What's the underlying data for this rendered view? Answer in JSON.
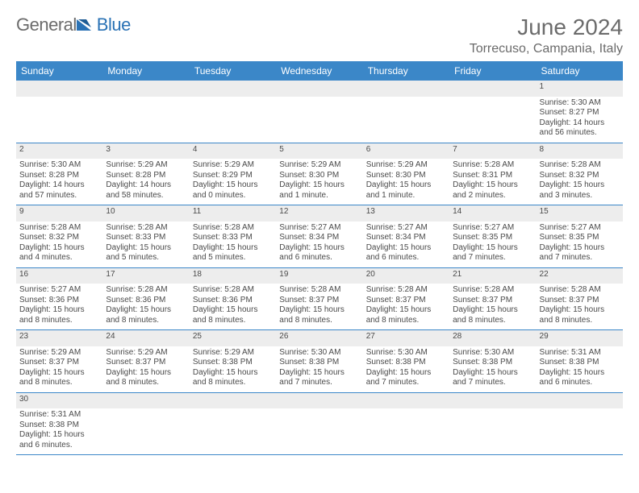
{
  "brand": {
    "part1": "General",
    "part2": "Blue"
  },
  "colors": {
    "header_bg": "#3b87c8",
    "header_fg": "#ffffff",
    "row_divider": "#3b87c8",
    "daynum_bg": "#ededed",
    "text": "#4a4a4a",
    "title": "#6b6b6b"
  },
  "title": "June 2024",
  "location": "Torrecuso, Campania, Italy",
  "weekdays": [
    "Sunday",
    "Monday",
    "Tuesday",
    "Wednesday",
    "Thursday",
    "Friday",
    "Saturday"
  ],
  "weeks": [
    [
      null,
      null,
      null,
      null,
      null,
      null,
      {
        "d": "1",
        "sr": "Sunrise: 5:30 AM",
        "ss": "Sunset: 8:27 PM",
        "dl": "Daylight: 14 hours and 56 minutes."
      }
    ],
    [
      {
        "d": "2",
        "sr": "Sunrise: 5:30 AM",
        "ss": "Sunset: 8:28 PM",
        "dl": "Daylight: 14 hours and 57 minutes."
      },
      {
        "d": "3",
        "sr": "Sunrise: 5:29 AM",
        "ss": "Sunset: 8:28 PM",
        "dl": "Daylight: 14 hours and 58 minutes."
      },
      {
        "d": "4",
        "sr": "Sunrise: 5:29 AM",
        "ss": "Sunset: 8:29 PM",
        "dl": "Daylight: 15 hours and 0 minutes."
      },
      {
        "d": "5",
        "sr": "Sunrise: 5:29 AM",
        "ss": "Sunset: 8:30 PM",
        "dl": "Daylight: 15 hours and 1 minute."
      },
      {
        "d": "6",
        "sr": "Sunrise: 5:29 AM",
        "ss": "Sunset: 8:30 PM",
        "dl": "Daylight: 15 hours and 1 minute."
      },
      {
        "d": "7",
        "sr": "Sunrise: 5:28 AM",
        "ss": "Sunset: 8:31 PM",
        "dl": "Daylight: 15 hours and 2 minutes."
      },
      {
        "d": "8",
        "sr": "Sunrise: 5:28 AM",
        "ss": "Sunset: 8:32 PM",
        "dl": "Daylight: 15 hours and 3 minutes."
      }
    ],
    [
      {
        "d": "9",
        "sr": "Sunrise: 5:28 AM",
        "ss": "Sunset: 8:32 PM",
        "dl": "Daylight: 15 hours and 4 minutes."
      },
      {
        "d": "10",
        "sr": "Sunrise: 5:28 AM",
        "ss": "Sunset: 8:33 PM",
        "dl": "Daylight: 15 hours and 5 minutes."
      },
      {
        "d": "11",
        "sr": "Sunrise: 5:28 AM",
        "ss": "Sunset: 8:33 PM",
        "dl": "Daylight: 15 hours and 5 minutes."
      },
      {
        "d": "12",
        "sr": "Sunrise: 5:27 AM",
        "ss": "Sunset: 8:34 PM",
        "dl": "Daylight: 15 hours and 6 minutes."
      },
      {
        "d": "13",
        "sr": "Sunrise: 5:27 AM",
        "ss": "Sunset: 8:34 PM",
        "dl": "Daylight: 15 hours and 6 minutes."
      },
      {
        "d": "14",
        "sr": "Sunrise: 5:27 AM",
        "ss": "Sunset: 8:35 PM",
        "dl": "Daylight: 15 hours and 7 minutes."
      },
      {
        "d": "15",
        "sr": "Sunrise: 5:27 AM",
        "ss": "Sunset: 8:35 PM",
        "dl": "Daylight: 15 hours and 7 minutes."
      }
    ],
    [
      {
        "d": "16",
        "sr": "Sunrise: 5:27 AM",
        "ss": "Sunset: 8:36 PM",
        "dl": "Daylight: 15 hours and 8 minutes."
      },
      {
        "d": "17",
        "sr": "Sunrise: 5:28 AM",
        "ss": "Sunset: 8:36 PM",
        "dl": "Daylight: 15 hours and 8 minutes."
      },
      {
        "d": "18",
        "sr": "Sunrise: 5:28 AM",
        "ss": "Sunset: 8:36 PM",
        "dl": "Daylight: 15 hours and 8 minutes."
      },
      {
        "d": "19",
        "sr": "Sunrise: 5:28 AM",
        "ss": "Sunset: 8:37 PM",
        "dl": "Daylight: 15 hours and 8 minutes."
      },
      {
        "d": "20",
        "sr": "Sunrise: 5:28 AM",
        "ss": "Sunset: 8:37 PM",
        "dl": "Daylight: 15 hours and 8 minutes."
      },
      {
        "d": "21",
        "sr": "Sunrise: 5:28 AM",
        "ss": "Sunset: 8:37 PM",
        "dl": "Daylight: 15 hours and 8 minutes."
      },
      {
        "d": "22",
        "sr": "Sunrise: 5:28 AM",
        "ss": "Sunset: 8:37 PM",
        "dl": "Daylight: 15 hours and 8 minutes."
      }
    ],
    [
      {
        "d": "23",
        "sr": "Sunrise: 5:29 AM",
        "ss": "Sunset: 8:37 PM",
        "dl": "Daylight: 15 hours and 8 minutes."
      },
      {
        "d": "24",
        "sr": "Sunrise: 5:29 AM",
        "ss": "Sunset: 8:37 PM",
        "dl": "Daylight: 15 hours and 8 minutes."
      },
      {
        "d": "25",
        "sr": "Sunrise: 5:29 AM",
        "ss": "Sunset: 8:38 PM",
        "dl": "Daylight: 15 hours and 8 minutes."
      },
      {
        "d": "26",
        "sr": "Sunrise: 5:30 AM",
        "ss": "Sunset: 8:38 PM",
        "dl": "Daylight: 15 hours and 7 minutes."
      },
      {
        "d": "27",
        "sr": "Sunrise: 5:30 AM",
        "ss": "Sunset: 8:38 PM",
        "dl": "Daylight: 15 hours and 7 minutes."
      },
      {
        "d": "28",
        "sr": "Sunrise: 5:30 AM",
        "ss": "Sunset: 8:38 PM",
        "dl": "Daylight: 15 hours and 7 minutes."
      },
      {
        "d": "29",
        "sr": "Sunrise: 5:31 AM",
        "ss": "Sunset: 8:38 PM",
        "dl": "Daylight: 15 hours and 6 minutes."
      }
    ],
    [
      {
        "d": "30",
        "sr": "Sunrise: 5:31 AM",
        "ss": "Sunset: 8:38 PM",
        "dl": "Daylight: 15 hours and 6 minutes."
      },
      null,
      null,
      null,
      null,
      null,
      null
    ]
  ]
}
